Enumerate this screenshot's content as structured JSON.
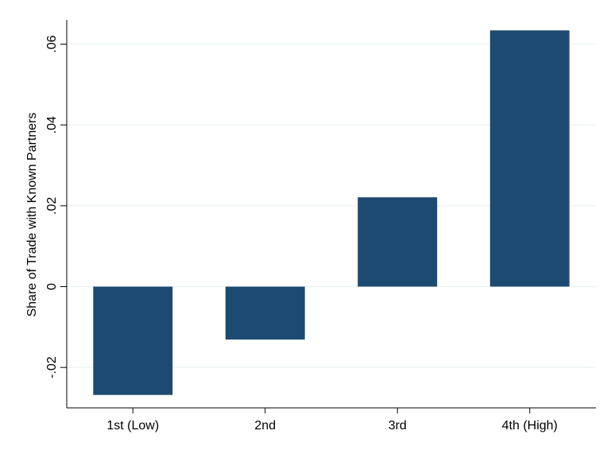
{
  "chart_data": {
    "type": "bar",
    "title": "",
    "xlabel": "",
    "ylabel": "Share of Trade with Known Partners",
    "categories": [
      "1st (Low)",
      "2nd",
      "3rd",
      "4th (High)"
    ],
    "values": [
      -0.0268,
      -0.0131,
      0.0221,
      0.0634
    ],
    "ylim": [
      -0.03,
      0.066
    ],
    "yticks": [
      -0.02,
      0,
      0.02,
      0.04,
      0.06
    ],
    "ytick_labels": [
      "-.02",
      "0",
      ".02",
      ".04",
      ".06"
    ],
    "grid": true,
    "legend": "none",
    "bar_color": "#1d4a70",
    "grid_color": "#eaf2f3"
  }
}
